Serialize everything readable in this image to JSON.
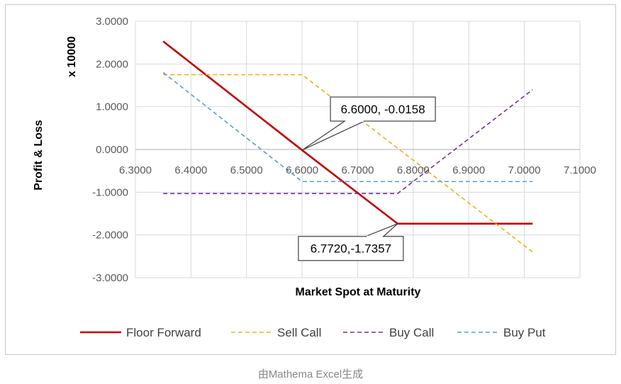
{
  "chart_data": {
    "type": "line",
    "xlabel": "Market Spot at Maturity",
    "ylabel": "Profit & Loss",
    "yunit": "x 10000",
    "xlim": [
      6.3,
      7.1
    ],
    "ylim": [
      -3.0,
      3.0
    ],
    "x_ticks": [
      "6.3000",
      "6.4000",
      "6.5000",
      "6.6000",
      "6.7000",
      "6.8000",
      "6.9000",
      "7.0000",
      "7.1000"
    ],
    "y_ticks": [
      "3.0000",
      "2.0000",
      "1.0000",
      "0.0000",
      "-1.0000",
      "-2.0000",
      "-3.0000"
    ],
    "grid": true,
    "legend": "bottom",
    "series": [
      {
        "name": "Floor Forward",
        "color": "#c00000",
        "style": "solid",
        "x": [
          6.35,
          6.6,
          6.772,
          7.015
        ],
        "y": [
          2.53,
          -0.0158,
          -1.7357,
          -1.7357
        ]
      },
      {
        "name": "Sell Call",
        "color": "#e6b420",
        "style": "dashed",
        "x": [
          6.35,
          6.6,
          7.015
        ],
        "y": [
          1.75,
          1.75,
          -2.4
        ]
      },
      {
        "name": "Buy Call",
        "color": "#7030a0",
        "style": "dashed",
        "x": [
          6.35,
          6.772,
          7.015
        ],
        "y": [
          -1.03,
          -1.03,
          1.4
        ]
      },
      {
        "name": "Buy Put",
        "color": "#5b9bd5",
        "style": "dashed",
        "x": [
          6.35,
          6.6,
          7.015
        ],
        "y": [
          1.8,
          -0.75,
          -0.75
        ]
      }
    ],
    "annotations": [
      {
        "text": "6.6000, -0.0158",
        "x": 6.6,
        "y": -0.0158,
        "position": "upper-right"
      },
      {
        "text": "6.7720,-1.7357",
        "x": 6.772,
        "y": -1.7357,
        "position": "lower-left"
      }
    ]
  },
  "caption": "由Mathema Excel生成"
}
